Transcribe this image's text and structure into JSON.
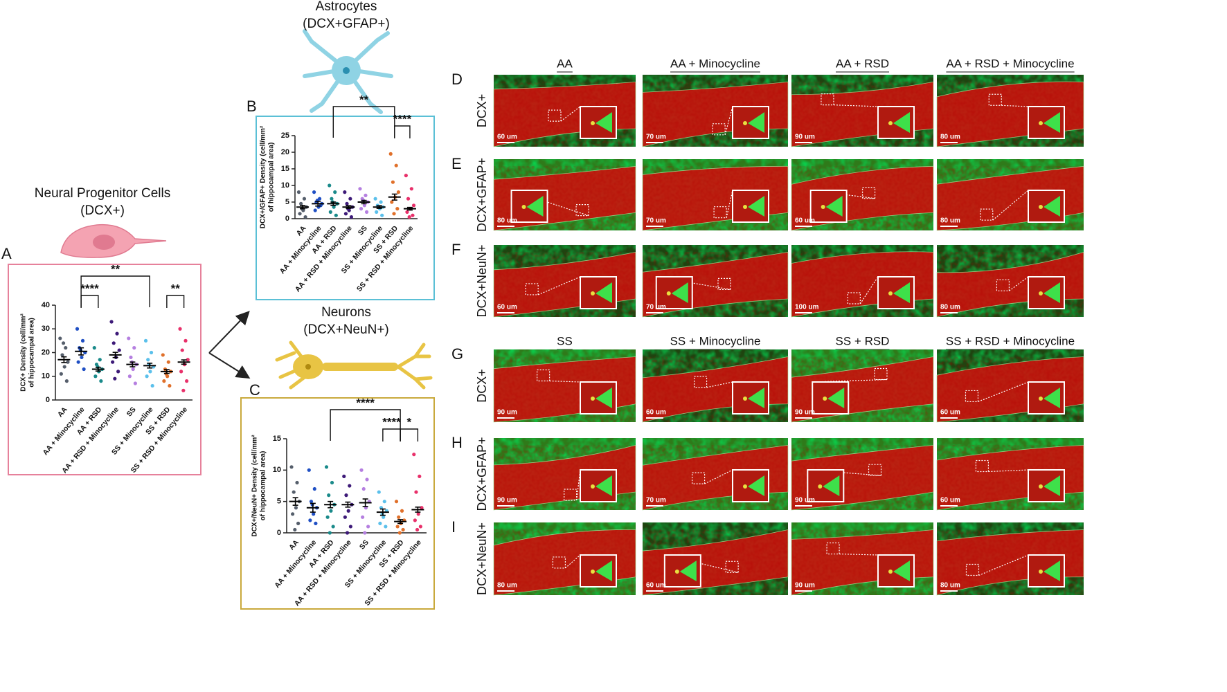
{
  "chart_data": [
    {
      "type": "dotplot",
      "panel": "A",
      "title": [
        "Neural Progenitor Cells",
        "(DCX+)"
      ],
      "ylabel": [
        "DCX+ Density (cell/mm²",
        "of hippocampal area)"
      ],
      "categories": [
        "AA",
        "AA + Minocycline",
        "AA + RSD",
        "AA + RSD + Minocycline",
        "SS",
        "SS + Minocycline",
        "SS + RSD",
        "SS + RSD + Minocycline"
      ],
      "colors": [
        "#555e6b",
        "#1f4fc4",
        "#1a8a8a",
        "#3d1a78",
        "#b57fe0",
        "#5bc0eb",
        "#e0702a",
        "#e8306a"
      ],
      "values": [
        17,
        20.5,
        13,
        19,
        15,
        14.5,
        12,
        16
      ],
      "errors": [
        1.2,
        1.5,
        0.8,
        1.1,
        1.0,
        1.0,
        0.8,
        0.9
      ],
      "points": [
        [
          26,
          22,
          19,
          16,
          14,
          11,
          8,
          24
        ],
        [
          30,
          25,
          22,
          20,
          18,
          16,
          13,
          21
        ],
        [
          22,
          17,
          15,
          13,
          12,
          10,
          8,
          14
        ],
        [
          33,
          28,
          24,
          21,
          18,
          16,
          12,
          9
        ],
        [
          26,
          22,
          18,
          15,
          13,
          10,
          7,
          16
        ],
        [
          25,
          20,
          17,
          14,
          12,
          10,
          6,
          15
        ],
        [
          19,
          16,
          13,
          12,
          10,
          8,
          6,
          11
        ],
        [
          30,
          25,
          21,
          17,
          15,
          12,
          8,
          4
        ]
      ],
      "ylim": [
        0,
        40
      ],
      "yticks": [
        0,
        10,
        20,
        30,
        40
      ],
      "significance": [
        {
          "label": "**",
          "from": 1,
          "to": 5
        },
        {
          "label": "****",
          "from": 1,
          "to": 2
        },
        {
          "label": "**",
          "from": 6,
          "to": 7
        }
      ]
    },
    {
      "type": "dotplot",
      "panel": "B",
      "title": [
        "Astrocytes",
        "(DCX+GFAP+)"
      ],
      "ylabel": [
        "DCX+/GFAP+ Density (cell/mm²",
        "of hippocampal area)"
      ],
      "categories": [
        "AA",
        "AA + Minocycline",
        "AA + RSD",
        "AA + RSD + Minocycline",
        "SS",
        "SS + Minocycline",
        "SS + RSD",
        "SS + RSD + Minocycline"
      ],
      "colors": [
        "#555e6b",
        "#1f4fc4",
        "#1a8a8a",
        "#3d1a78",
        "#b57fe0",
        "#5bc0eb",
        "#e0702a",
        "#e8306a"
      ],
      "values": [
        3.5,
        4.5,
        4.5,
        3.5,
        5,
        3.5,
        6.5,
        3
      ],
      "errors": [
        0.5,
        0.7,
        0.5,
        0.4,
        0.5,
        0.4,
        0.9,
        0.4
      ],
      "points": [
        [
          8,
          6,
          4.5,
          3.5,
          2.5,
          1.5,
          0.5,
          3
        ],
        [
          8,
          6,
          5,
          4.5,
          3.5,
          2.5,
          4,
          5.5
        ],
        [
          10,
          8,
          6,
          4.5,
          3.5,
          2,
          1,
          5
        ],
        [
          8,
          6,
          4.5,
          3.5,
          2.5,
          1.5,
          0.5,
          3
        ],
        [
          9,
          7,
          6,
          5,
          4,
          3,
          2,
          5.5
        ],
        [
          6,
          5,
          4,
          3.5,
          3,
          2,
          1,
          3.5
        ],
        [
          19.5,
          16,
          11,
          8,
          6.5,
          5,
          3,
          1.5
        ],
        [
          13,
          9,
          6,
          4,
          3,
          2,
          1,
          0.5
        ]
      ],
      "ylim": [
        0,
        25
      ],
      "yticks": [
        0,
        5,
        10,
        15,
        20,
        25
      ],
      "significance": [
        {
          "label": "**",
          "from": 2,
          "to": 6
        },
        {
          "label": "****",
          "from": 6,
          "to": 7
        }
      ]
    },
    {
      "type": "dotplot",
      "panel": "C",
      "title": [
        "Neurons",
        "(DCX+NeuN+)"
      ],
      "ylabel": [
        "DCX+/NeuN+ Density (cell/mm²",
        "of hippocampal area)"
      ],
      "categories": [
        "AA",
        "AA + Minocycline",
        "AA + RSD",
        "AA + RSD + Minocycline",
        "SS",
        "SS + Minocycline",
        "SS + RSD",
        "SS + RSD + Minocycline"
      ],
      "colors": [
        "#555e6b",
        "#1f4fc4",
        "#1a8a8a",
        "#3d1a78",
        "#b57fe0",
        "#5bc0eb",
        "#e0702a",
        "#e8306a"
      ],
      "values": [
        5,
        4,
        4.5,
        4.5,
        4.8,
        3.3,
        1.8,
        3.7
      ],
      "errors": [
        0.6,
        0.7,
        0.5,
        0.4,
        0.6,
        0.5,
        0.3,
        0.4
      ],
      "points": [
        [
          10.5,
          8,
          6.5,
          5,
          4,
          3,
          1.5,
          0.5
        ],
        [
          10,
          7,
          5,
          4,
          3,
          2,
          1.5,
          4.5
        ],
        [
          10.5,
          8,
          6,
          4.5,
          3.5,
          2.5,
          1,
          0
        ],
        [
          9,
          7.5,
          6,
          4.5,
          3.5,
          2.5,
          1,
          0
        ],
        [
          10,
          8.5,
          7,
          5,
          4,
          2.5,
          1,
          0
        ],
        [
          6.5,
          5,
          4,
          3.5,
          2.5,
          1.5,
          1,
          3
        ],
        [
          5,
          3.5,
          2.5,
          2,
          1.5,
          1,
          0.5,
          0
        ],
        [
          12.5,
          9,
          6.5,
          4,
          3,
          2,
          1,
          0.5
        ]
      ],
      "ylim": [
        0,
        15
      ],
      "yticks": [
        0,
        5,
        10,
        15
      ],
      "significance": [
        {
          "label": "****",
          "from": 2,
          "to": 6
        },
        {
          "label": "****",
          "from": 5,
          "to": 6
        },
        {
          "label": "*",
          "from": 6,
          "to": 7
        }
      ]
    }
  ],
  "micrographs": [
    {
      "columns": [
        "AA",
        "AA + Minocycline",
        "AA + RSD",
        "AA + RSD + Minocycline"
      ],
      "rows": [
        {
          "letter": "D",
          "label": "DCX+",
          "scale_bars": [
            "60 um",
            "70 um",
            "90 um",
            "80 um"
          ]
        },
        {
          "letter": "E",
          "label": "DCX+GFAP+",
          "scale_bars": [
            "80 um",
            "70 um",
            "60 um",
            "80 um"
          ]
        },
        {
          "letter": "F",
          "label": "DCX+NeuN+",
          "scale_bars": [
            "60 um",
            "70 um",
            "100 um",
            "80 um"
          ]
        }
      ]
    },
    {
      "columns": [
        "SS",
        "SS + Minocycline",
        "SS + RSD",
        "SS + RSD + Minocycline"
      ],
      "rows": [
        {
          "letter": "G",
          "label": "DCX+",
          "scale_bars": [
            "90 um",
            "60 um",
            "90 um",
            "60 um"
          ]
        },
        {
          "letter": "H",
          "label": "DCX+GFAP+",
          "scale_bars": [
            "90 um",
            "70 um",
            "90 um",
            "60 um"
          ]
        },
        {
          "letter": "I",
          "label": "DCX+NeuN+",
          "scale_bars": [
            "80 um",
            "60 um",
            "90 um",
            "80 um"
          ]
        }
      ]
    }
  ]
}
